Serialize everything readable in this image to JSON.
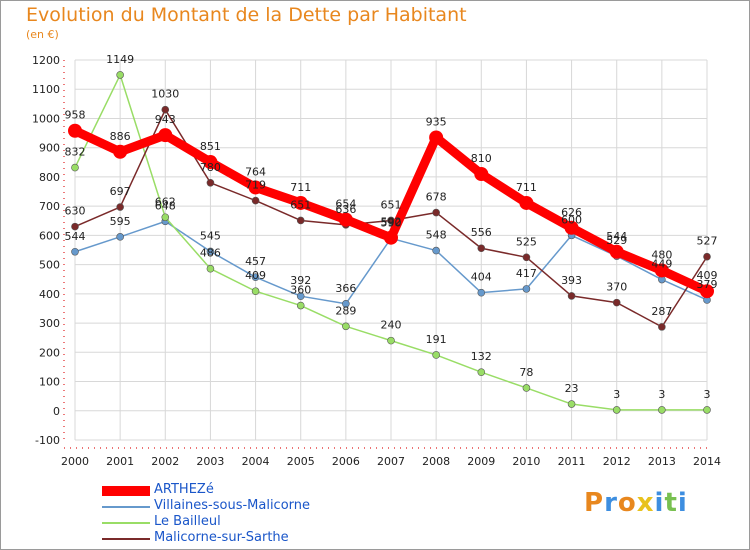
{
  "chart_data": {
    "type": "line",
    "title": "Evolution du Montant de la Dette par Habitant",
    "subtitle": "(en €)",
    "x": [
      "2000",
      "2001",
      "2002",
      "2003",
      "2004",
      "2005",
      "2006",
      "2007",
      "2008",
      "2009",
      "2010",
      "2011",
      "2012",
      "2013",
      "2014"
    ],
    "ylim": [
      -100,
      1200
    ],
    "yticks": [
      -100,
      0,
      100,
      200,
      300,
      400,
      500,
      600,
      700,
      800,
      900,
      1000,
      1100,
      1200
    ],
    "grid": true,
    "legend_position": "bottom-left",
    "series": [
      {
        "name": "ARTHEZé",
        "color": "#ff0000",
        "values": [
          958,
          886,
          943,
          851,
          764,
          711,
          654,
          592,
          935,
          810,
          711,
          626,
          544,
          480,
          409
        ]
      },
      {
        "name": "Villaines-sous-Malicorne",
        "color": "#6699cc",
        "values": [
          544,
          595,
          648,
          545,
          457,
          392,
          366,
          590,
          548,
          404,
          417,
          600,
          529,
          449,
          379
        ]
      },
      {
        "name": "Le Bailleul",
        "color": "#99dd66",
        "values": [
          832,
          1149,
          662,
          486,
          409,
          360,
          289,
          240,
          191,
          132,
          78,
          23,
          3,
          3,
          3
        ]
      },
      {
        "name": "Malicorne-sur-Sarthe",
        "color": "#7a2a2a",
        "values": [
          630,
          697,
          1030,
          780,
          719,
          651,
          636,
          651,
          678,
          556,
          525,
          393,
          370,
          287,
          527
        ]
      }
    ]
  },
  "logo": {
    "letters": [
      "P",
      "r",
      "o",
      "x",
      "i",
      "t",
      "i"
    ],
    "colors": [
      "#e8871e",
      "#3d8ee0",
      "#e8871e",
      "#e8c21e",
      "#3d8ee0",
      "#78c050",
      "#3d8ee0"
    ]
  }
}
